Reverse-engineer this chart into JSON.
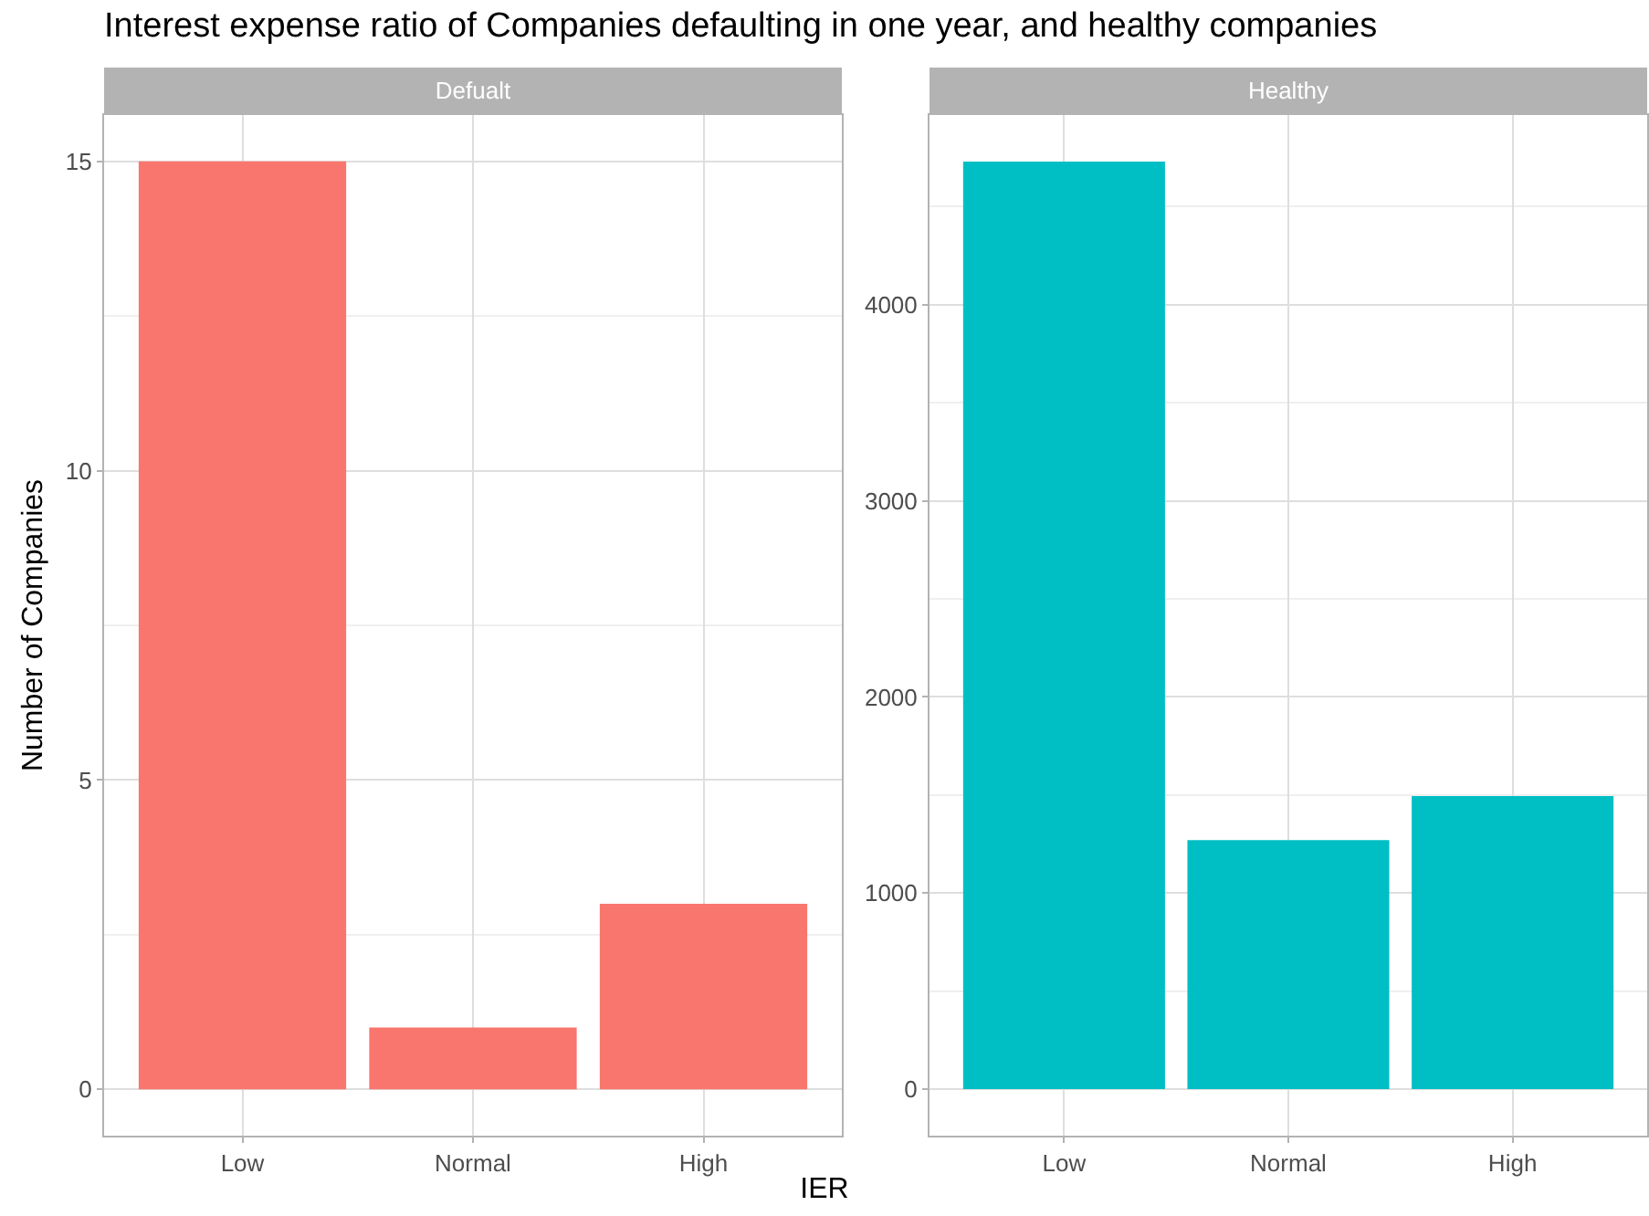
{
  "chart_data": [
    {
      "type": "bar",
      "title": "Defualt",
      "annotations": [
        "Interest expense ratio of Companies defaulting in one year, and healthy companies"
      ],
      "xlabel": "IER",
      "ylabel": "Number of Companies",
      "categories": [
        "Low",
        "Normal",
        "High"
      ],
      "values": [
        15,
        1,
        3
      ],
      "color": "#f8766d",
      "ylim": [
        -0.75,
        15.75
      ],
      "yticks": [
        0,
        5,
        10,
        15
      ],
      "grid": true
    },
    {
      "type": "bar",
      "title": "Healthy",
      "categories": [
        "Low",
        "Normal",
        "High"
      ],
      "values": [
        4730,
        1270,
        1495
      ],
      "color": "#00bfc4",
      "ylim": [
        -237,
        4967
      ],
      "yticks": [
        0,
        1000,
        2000,
        3000,
        4000
      ],
      "grid": true
    }
  ]
}
